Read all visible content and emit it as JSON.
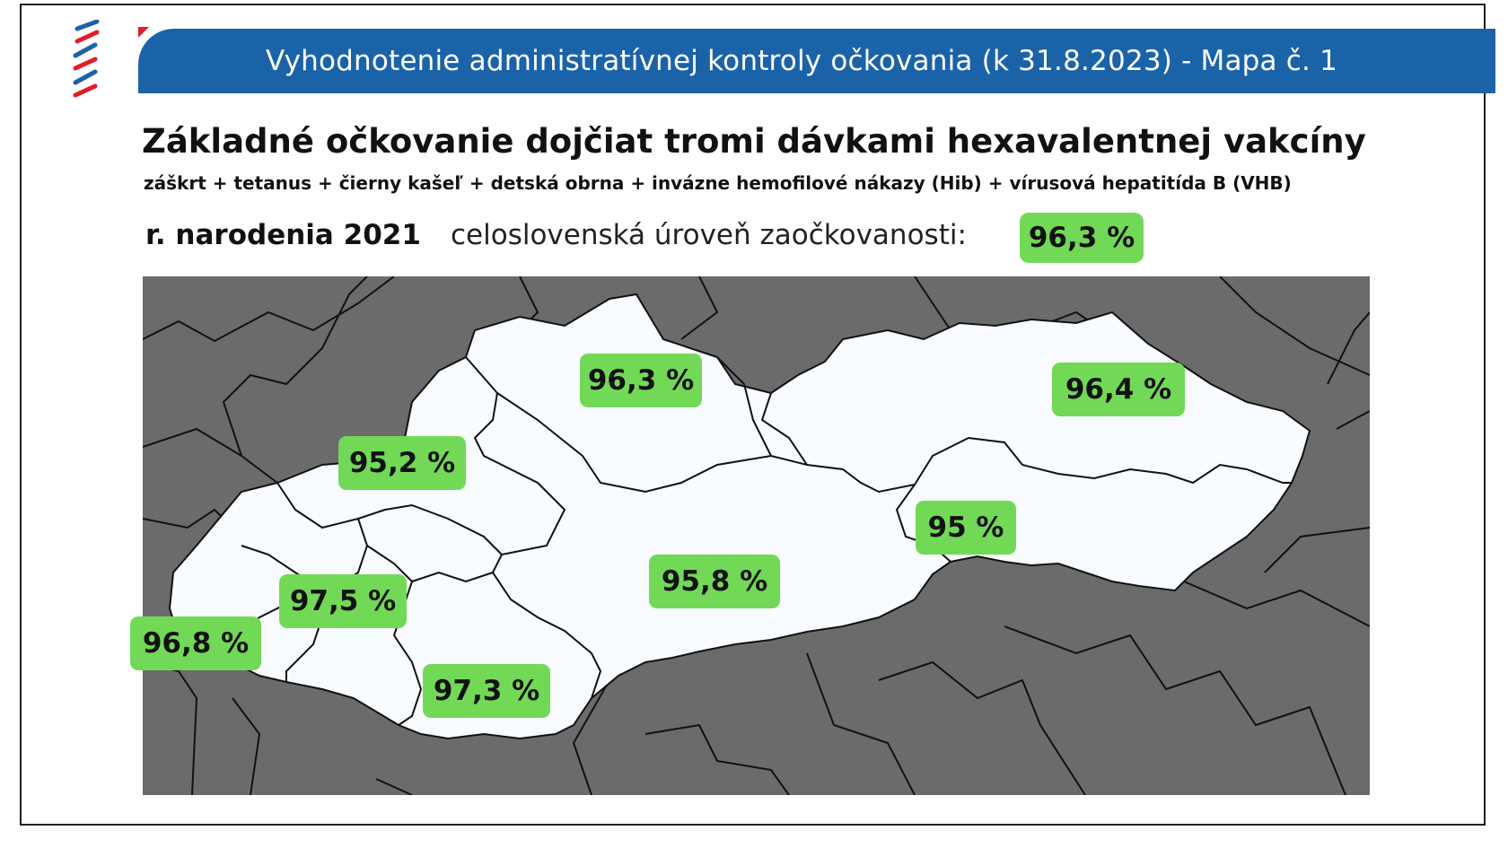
{
  "header": {
    "banner_title": "Vyhodnotenie administratívnej kontroly očkovania (k 31.8.2023) - Mapa č. 1"
  },
  "title": "Základné očkovanie dojčiat tromi dávkami hexavalentnej vakcíny",
  "subtitle": "záškrt + tetanus + čierny kašeľ + detská obrna + invázne hemofilové nákazy (Hib) + vírusová hepatitída B (VHB)",
  "birth_year_label": "r. narodenia 2021",
  "national_label": "celoslovenská úroveň zaočkovanosti:",
  "national_value": "96,3 %",
  "colors": {
    "banner": "#1b63a8",
    "badge": "#72d957",
    "region_fill": "#f8fbff",
    "surrounding": "#6b6b6b"
  },
  "regions": [
    {
      "value": "96,3 %"
    },
    {
      "value": "96,4 %"
    },
    {
      "value": "95,2 %"
    },
    {
      "value": "95 %"
    },
    {
      "value": "95,8 %"
    },
    {
      "value": "97,5 %"
    },
    {
      "value": "96,8 %"
    },
    {
      "value": "97,3 %"
    }
  ]
}
